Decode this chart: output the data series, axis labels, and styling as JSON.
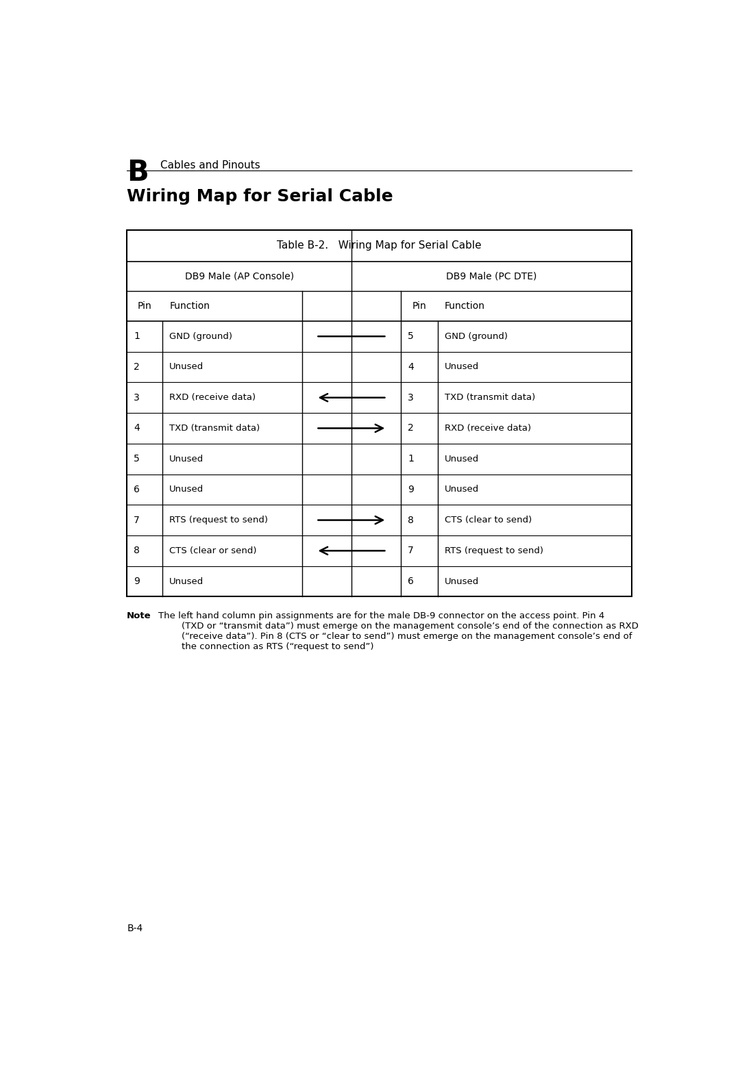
{
  "page_letter": "B",
  "page_header": "Cables and Pinouts",
  "section_title": "Wiring Map for Serial Cable",
  "table_title": "Table B-2.   Wiring Map for Serial Cable",
  "left_header": "DB9 Male (AP Console)",
  "right_header": "DB9 Male (PC DTE)",
  "rows": [
    {
      "left_pin": "1",
      "left_func": "GND (ground)",
      "arrow": "straight",
      "right_pin": "5",
      "right_func": "GND (ground)"
    },
    {
      "left_pin": "2",
      "left_func": "Unused",
      "arrow": "none",
      "right_pin": "4",
      "right_func": "Unused"
    },
    {
      "left_pin": "3",
      "left_func": "RXD (receive data)",
      "arrow": "left",
      "right_pin": "3",
      "right_func": "TXD (transmit data)"
    },
    {
      "left_pin": "4",
      "left_func": "TXD (transmit data)",
      "arrow": "right",
      "right_pin": "2",
      "right_func": "RXD (receive data)"
    },
    {
      "left_pin": "5",
      "left_func": "Unused",
      "arrow": "none",
      "right_pin": "1",
      "right_func": "Unused"
    },
    {
      "left_pin": "6",
      "left_func": "Unused",
      "arrow": "none",
      "right_pin": "9",
      "right_func": "Unused"
    },
    {
      "left_pin": "7",
      "left_func": "RTS (request to send)",
      "arrow": "right",
      "right_pin": "8",
      "right_func": "CTS (clear to send)"
    },
    {
      "left_pin": "8",
      "left_func": "CTS (clear or send)",
      "arrow": "left",
      "right_pin": "7",
      "right_func": "RTS (request to send)"
    },
    {
      "left_pin": "9",
      "left_func": "Unused",
      "arrow": "none",
      "right_pin": "6",
      "right_func": "Unused"
    }
  ],
  "note_bold": "Note",
  "note_text": "The left hand column pin assignments are for the male DB-9 connector on the access point. Pin 4\n        (TXD or “transmit data”) must emerge on the management console’s end of the connection as RXD\n        (“receive data”). Pin 8 (CTS or “clear to send”) must emerge on the management console’s end of\n        the connection as RTS (“request to send”)",
  "page_number": "B-4",
  "bg_color": "#ffffff",
  "text_color": "#000000",
  "border_color": "#000000"
}
